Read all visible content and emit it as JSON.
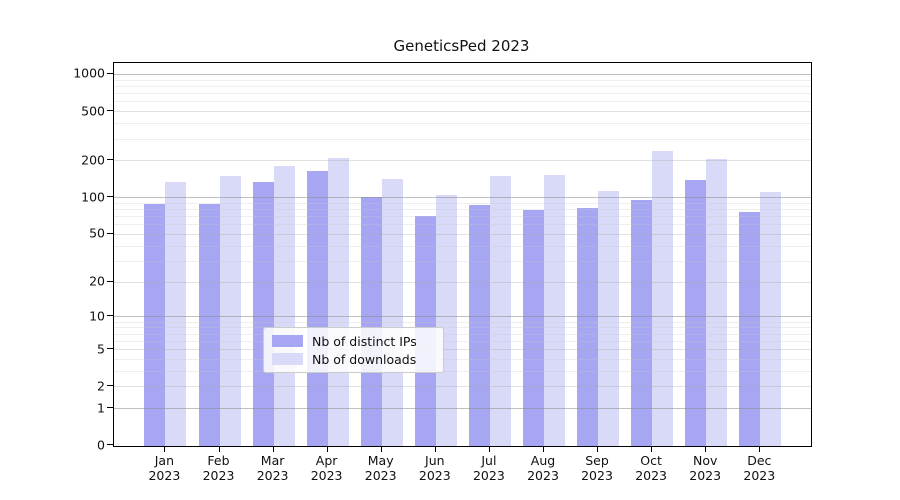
{
  "chart_data": {
    "type": "bar",
    "title": "GeneticsPed 2023",
    "scale": "log1p",
    "categories": [
      "Jan",
      "Feb",
      "Mar",
      "Apr",
      "May",
      "Jun",
      "Jul",
      "Aug",
      "Sep",
      "Oct",
      "Nov",
      "Dec"
    ],
    "year_label": "2023",
    "series": [
      {
        "name": "Nb of distinct IPs",
        "color": "#a6a6f2",
        "values": [
          88,
          88,
          134,
          164,
          101,
          70,
          86,
          79,
          81,
          95,
          137,
          76
        ]
      },
      {
        "name": "Nb of downloads",
        "color": "#d9d9f8",
        "values": [
          134,
          150,
          180,
          210,
          142,
          104,
          148,
          151,
          112,
          236,
          205,
          111
        ]
      }
    ],
    "y_ticks": [
      1000,
      500,
      200,
      100,
      50,
      20,
      10,
      5,
      2,
      1,
      0
    ],
    "y_minor_ticks": [
      3,
      4,
      6,
      7,
      8,
      9,
      30,
      40,
      60,
      70,
      80,
      90,
      300,
      400,
      600,
      700,
      800,
      900
    ],
    "ylim": [
      0,
      1000
    ],
    "xlabel": "",
    "ylabel": "",
    "grid": true,
    "legend_position": "bottom-center",
    "grid_colors": {
      "decade": "rgba(140,140,140,0.55)",
      "labeled": "rgba(170,170,170,0.35)",
      "minor": "rgba(200,200,200,0.30)"
    }
  }
}
